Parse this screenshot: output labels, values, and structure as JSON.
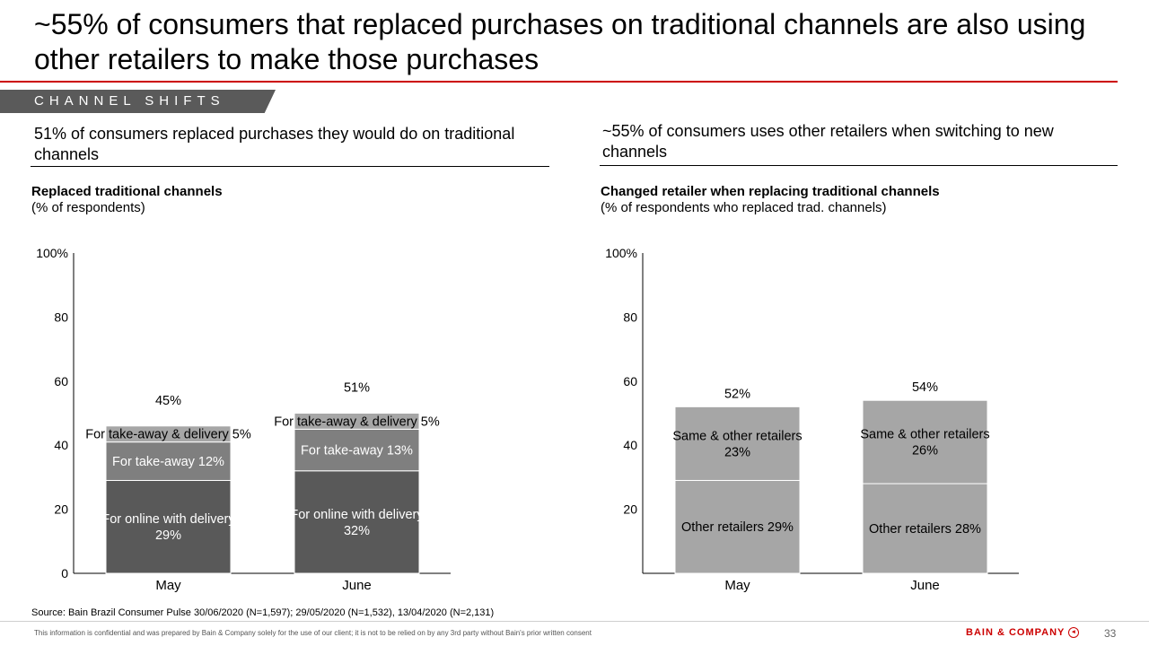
{
  "slide": {
    "title": "~55% of consumers that replaced purchases on traditional channels are also using other retailers to make those purchases",
    "section_tag": "CHANNEL SHIFTS",
    "left_heading": "51% of consumers replaced purchases they would do on traditional channels",
    "right_heading": "~55% of consumers uses other retailers when switching to new channels",
    "source": "Source: Bain Brazil Consumer Pulse 30/06/2020 (N=1,597); 29/05/2020 (N=1,532), 13/04/2020 (N=2,131)",
    "disclaimer": "This information is confidential and was prepared by Bain & Company solely for the use of our client; it is not to be relied on by any 3rd party without Bain's prior written consent",
    "brand": "BAIN & COMPANY",
    "page_number": "33",
    "colors": {
      "accent": "#cc0000",
      "dark": "#595959",
      "mid": "#7f7f7f",
      "light": "#a6a6a6"
    }
  },
  "left_chart": {
    "title": "Replaced traditional channels",
    "subtitle": "(% of respondents)"
  },
  "right_chart": {
    "title": "Changed retailer  when replacing traditional channels",
    "subtitle": "(% of respondents who replaced trad. channels)"
  },
  "chart_data": [
    {
      "type": "bar",
      "stacked": true,
      "title": "Replaced traditional channels",
      "subtitle": "(% of respondents)",
      "categories": [
        "May",
        "June"
      ],
      "ylim": [
        0,
        100
      ],
      "yticks": [
        "0",
        "20",
        "40",
        "60",
        "80",
        "100%"
      ],
      "totals": [
        "45%",
        "51%"
      ],
      "series": [
        {
          "values": [
            29,
            32
          ],
          "labels": [
            "For online with delivery 29%",
            "For online with delivery 32%"
          ],
          "color": "#595959",
          "label_color": "#ffffff"
        },
        {
          "values": [
            12,
            13
          ],
          "labels": [
            "For take-away 12%",
            "For take-away 13%"
          ],
          "color": "#7f7f7f",
          "label_color": "#ffffff"
        },
        {
          "values": [
            5,
            5
          ],
          "labels": [
            "For take-away & delivery 5%",
            "For take-away & delivery 5%"
          ],
          "color": "#a6a6a6",
          "label_color": "#000000"
        }
      ],
      "grid": false
    },
    {
      "type": "bar",
      "stacked": true,
      "title": "Changed retailer  when replacing traditional channels",
      "subtitle": "(% of respondents who replaced trad. channels)",
      "categories": [
        "May",
        "June"
      ],
      "ylim": [
        0,
        100
      ],
      "yticks": [
        "",
        "20",
        "40",
        "60",
        "80",
        "100%"
      ],
      "totals": [
        "52%",
        "54%"
      ],
      "series": [
        {
          "values": [
            29,
            28
          ],
          "labels": [
            "Other retailers 29%",
            "Other retailers 28%"
          ],
          "color": "#a6a6a6",
          "label_color": "#000000"
        },
        {
          "values": [
            23,
            26
          ],
          "labels": [
            "Same & other retailers 23%",
            "Same & other retailers 26%"
          ],
          "color": "#a6a6a6",
          "label_color": "#000000"
        }
      ],
      "grid": false
    }
  ]
}
